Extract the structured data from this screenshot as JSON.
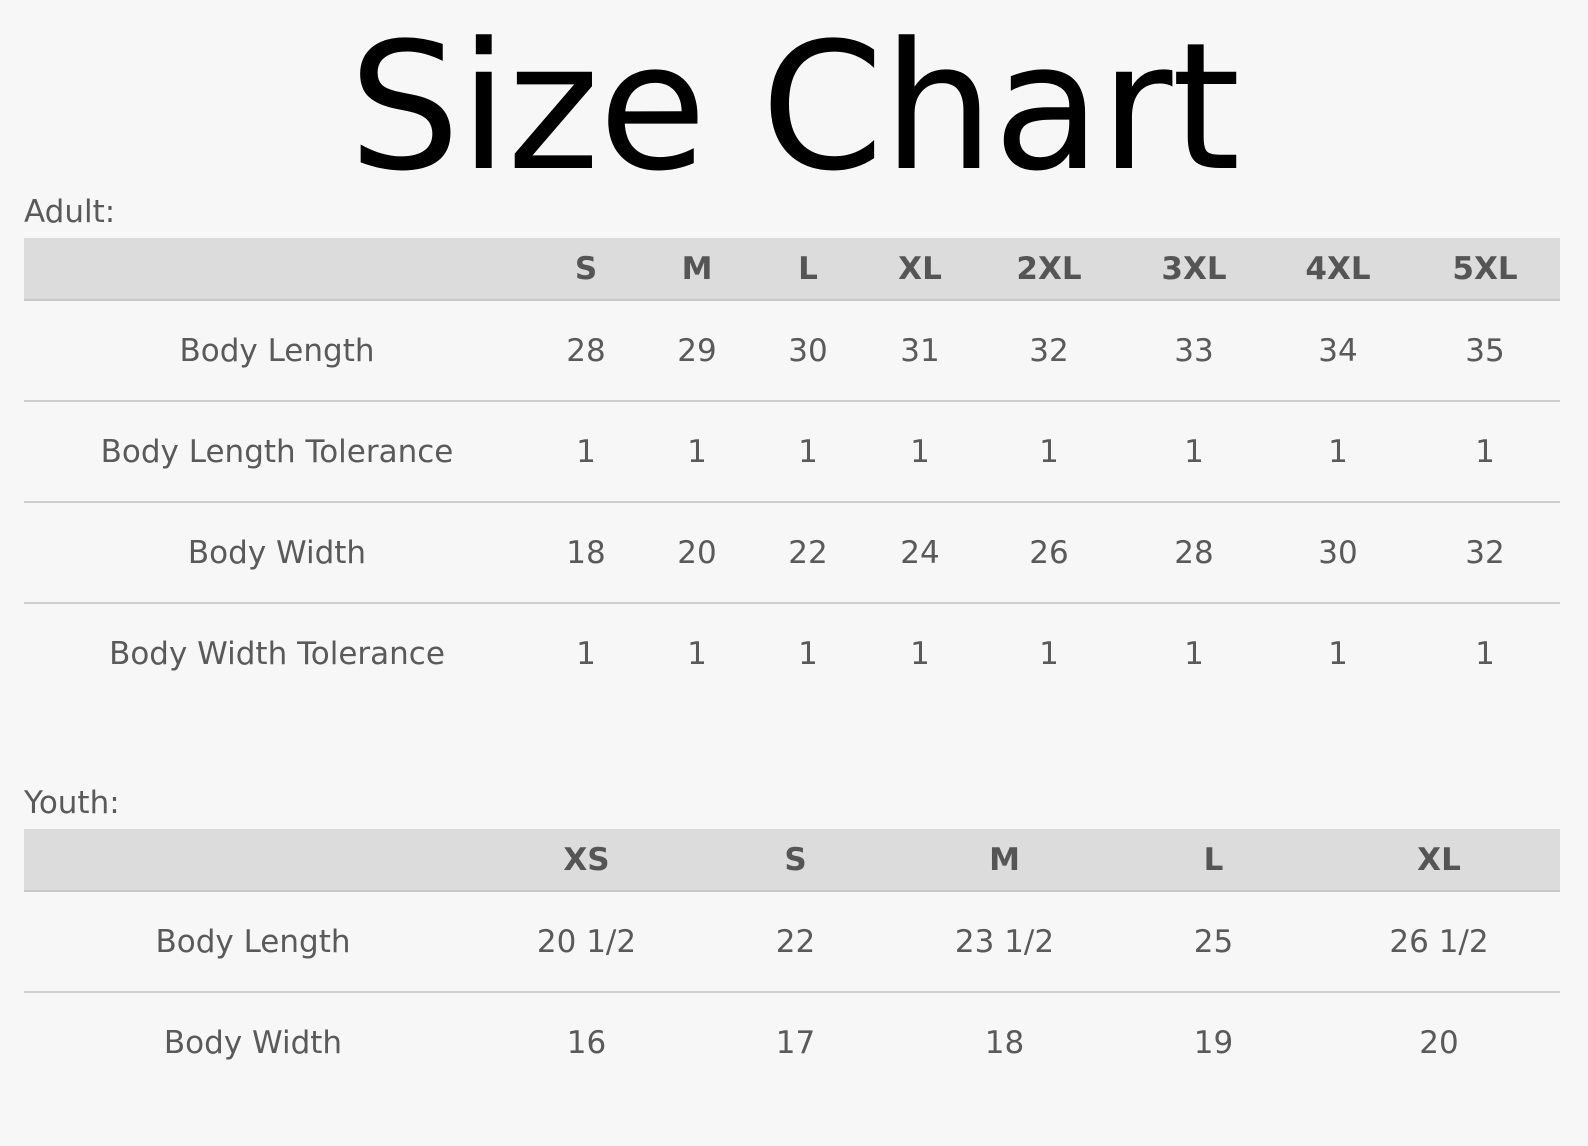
{
  "title": "Size Chart",
  "adult": {
    "label": "Adult:",
    "sizes": [
      "S",
      "M",
      "L",
      "XL",
      "2XL",
      "3XL",
      "4XL",
      "5XL"
    ],
    "rows": [
      {
        "label": "Body Length",
        "values": [
          "28",
          "29",
          "30",
          "31",
          "32",
          "33",
          "34",
          "35"
        ]
      },
      {
        "label": "Body Length Tolerance",
        "values": [
          "1",
          "1",
          "1",
          "1",
          "1",
          "1",
          "1",
          "1"
        ]
      },
      {
        "label": "Body Width",
        "values": [
          "18",
          "20",
          "22",
          "24",
          "26",
          "28",
          "30",
          "32"
        ]
      },
      {
        "label": "Body Width Tolerance",
        "values": [
          "1",
          "1",
          "1",
          "1",
          "1",
          "1",
          "1",
          "1"
        ]
      }
    ]
  },
  "youth": {
    "label": "Youth:",
    "sizes": [
      "XS",
      "S",
      "M",
      "L",
      "XL"
    ],
    "rows": [
      {
        "label": "Body Length",
        "values": [
          "20 1/2",
          "22",
          "23 1/2",
          "25",
          "26 1/2"
        ]
      },
      {
        "label": "Body Width",
        "values": [
          "16",
          "17",
          "18",
          "19",
          "20"
        ]
      }
    ]
  },
  "colors": {
    "background": "#f7f7f7",
    "header_bg": "#dcdcdc",
    "text": "#555555",
    "title": "#000000"
  }
}
